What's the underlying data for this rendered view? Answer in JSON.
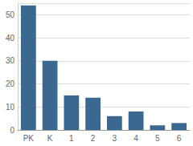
{
  "chart_data": {
    "type": "bar",
    "categories": [
      "PK",
      "K",
      "1",
      "2",
      "3",
      "4",
      "5",
      "6"
    ],
    "values": [
      54,
      30,
      15,
      14,
      6,
      8,
      2,
      3
    ],
    "color": "#3a6890",
    "ylim": [
      0,
      55
    ],
    "yticks": [
      0,
      10,
      20,
      30,
      40,
      50
    ],
    "grid": true
  }
}
